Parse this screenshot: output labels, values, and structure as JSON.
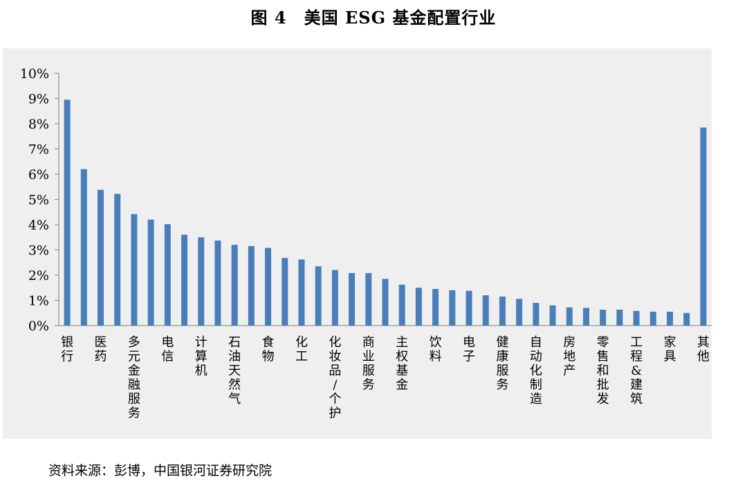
{
  "title": "图 4　美国 ESG 基金配置行业",
  "source": "资料来源：彭博，中国银河证券研究院",
  "colors": {
    "bar": "#4a7ebb",
    "plot_background": "#efefef",
    "axis": "#7f7f7f"
  },
  "chart_data": {
    "type": "bar",
    "title": "",
    "xlabel": "",
    "ylabel": "",
    "ylim": [
      0,
      10
    ],
    "yticks": [
      "0%",
      "1%",
      "2%",
      "3%",
      "4%",
      "5%",
      "6%",
      "7%",
      "8%",
      "9%",
      "10%"
    ],
    "grid": false,
    "legend": "none",
    "categories": [
      "银行",
      "",
      "医药",
      "",
      "多元金融服务",
      "",
      "电信",
      "",
      "计算机",
      "",
      "石油天然气",
      "",
      "食物",
      "",
      "化工",
      "",
      "化妆品/个护",
      "",
      "商业服务",
      "",
      "主权基金",
      "",
      "饮料",
      "",
      "电子",
      "",
      "健康服务",
      "",
      "自动化制造",
      "",
      "房地产",
      "",
      "零售和批发",
      "",
      "工程&建筑",
      "",
      "家具",
      "",
      "其他"
    ],
    "values": [
      8.95,
      6.2,
      5.38,
      5.22,
      4.42,
      4.2,
      4.02,
      3.6,
      3.5,
      3.37,
      3.2,
      3.15,
      3.08,
      2.68,
      2.62,
      2.35,
      2.2,
      2.08,
      2.08,
      1.85,
      1.62,
      1.5,
      1.45,
      1.4,
      1.38,
      1.2,
      1.15,
      1.06,
      0.9,
      0.8,
      0.72,
      0.7,
      0.63,
      0.63,
      0.58,
      0.55,
      0.55,
      0.5,
      7.85
    ]
  }
}
